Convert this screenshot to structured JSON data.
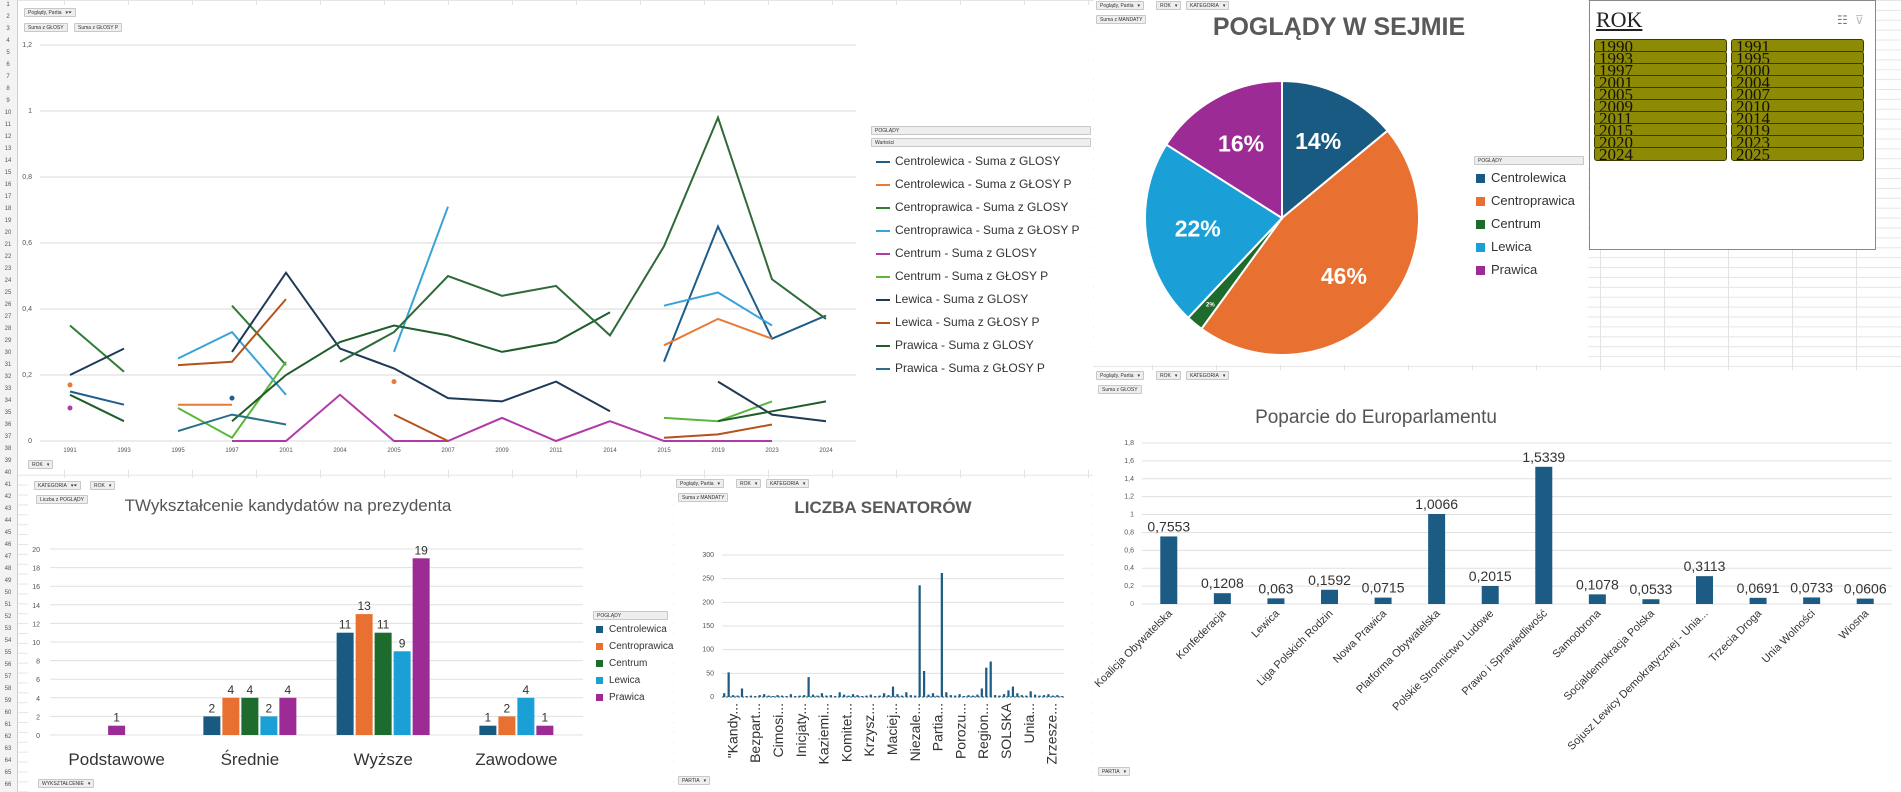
{
  "sheet": {
    "row_numbers": [
      1,
      2,
      3,
      4,
      5,
      6,
      7,
      8,
      9,
      10,
      11,
      12,
      13,
      14,
      15,
      16,
      17,
      18,
      19,
      20,
      21,
      22,
      23,
      24,
      25,
      26,
      27,
      28,
      29,
      30,
      31,
      32,
      33,
      34,
      35,
      36,
      37,
      38,
      39,
      40,
      41,
      42,
      43,
      44,
      45,
      46,
      47,
      48,
      49,
      50,
      51,
      52,
      53,
      54,
      55,
      56,
      57,
      58,
      59,
      60,
      61,
      62,
      63,
      64,
      65,
      66
    ]
  },
  "line_chart": {
    "filter_button": "Poglądy, Partia",
    "value_buttons": [
      "Suma z GŁOSY",
      "Suma z GŁOSY P"
    ],
    "axis_button": "ROK",
    "legend_header": "POGLĄDY",
    "legend_subheader": "Wartości",
    "chart_data": {
      "type": "line",
      "x": [
        "1991",
        "1993",
        "1995",
        "1997",
        "2001",
        "2004",
        "2005",
        "2007",
        "2009",
        "2011",
        "2014",
        "2015",
        "2019",
        "2023",
        "2024"
      ],
      "ylim": [
        0,
        1.2
      ],
      "yticks": [
        "0",
        "0,2",
        "0,4",
        "0,6",
        "0,8",
        "1",
        "1,2"
      ],
      "series": [
        {
          "name": "Centrolewica - Suma z GLOSY",
          "color": "#1f5d8a",
          "values": [
            0.15,
            0.11,
            null,
            0.13,
            null,
            null,
            null,
            null,
            null,
            null,
            null,
            0.24,
            0.65,
            0.31,
            0.38
          ]
        },
        {
          "name": "Centrolewica - Suma z GŁOSY P",
          "color": "#e87a34",
          "values": [
            0.17,
            null,
            0.11,
            0.11,
            null,
            null,
            0.18,
            null,
            null,
            null,
            null,
            0.29,
            0.37,
            0.31,
            null
          ]
        },
        {
          "name": "Centroprawica - Suma z GLOSY",
          "color": "#2e7d32",
          "values": [
            0.35,
            0.21,
            null,
            0.41,
            0.23,
            null,
            null,
            null,
            null,
            null,
            null,
            null,
            null,
            null,
            null
          ]
        },
        {
          "name": "Centroprawica - Suma z GŁOSY P",
          "color": "#3aa2d8",
          "values": [
            null,
            null,
            0.25,
            0.33,
            0.14,
            null,
            0.27,
            0.71,
            null,
            null,
            null,
            0.41,
            0.45,
            0.35,
            null
          ]
        },
        {
          "name": "Centrum - Suma z GLOSY",
          "color": "#b03aa8",
          "values": [
            0.1,
            null,
            null,
            0.0,
            0.0,
            0.14,
            0.0,
            0.0,
            0.07,
            0.0,
            0.06,
            0.0,
            0.0,
            0.0,
            null
          ]
        },
        {
          "name": "Centrum - Suma z GŁOSY P",
          "color": "#5bb63a",
          "values": [
            null,
            null,
            0.1,
            0.01,
            0.24,
            null,
            null,
            null,
            null,
            null,
            null,
            0.07,
            0.06,
            0.12,
            null
          ]
        },
        {
          "name": "Lewica - Suma z GLOSY",
          "color": "#1e3a57",
          "values": [
            0.2,
            0.28,
            null,
            0.27,
            0.51,
            0.28,
            0.22,
            0.13,
            0.12,
            0.18,
            0.09,
            null,
            0.18,
            0.08,
            0.06
          ]
        },
        {
          "name": "Lewica - Suma z GŁOSY P",
          "color": "#b5521b",
          "values": [
            null,
            null,
            0.23,
            0.24,
            0.43,
            null,
            0.08,
            0.0,
            null,
            null,
            null,
            0.01,
            0.02,
            0.05,
            null
          ]
        },
        {
          "name": "Prawica - Suma z GLOSY",
          "color": "#1f5e2b",
          "values": [
            0.14,
            0.06,
            null,
            0.06,
            0.2,
            0.3,
            0.35,
            0.32,
            0.27,
            0.3,
            0.39,
            null,
            0.06,
            0.09,
            0.12
          ]
        },
        {
          "name": "Prawica - Suma z GŁOSY P",
          "color": "#2b6d8c",
          "values": [
            null,
            null,
            0.03,
            0.08,
            0.05,
            null,
            null,
            null,
            null,
            null,
            null,
            null,
            null,
            null,
            null
          ]
        }
      ],
      "extra_series": [
        {
          "color": "#2d6b3a",
          "values": [
            null,
            null,
            null,
            null,
            null,
            0.24,
            0.33,
            0.5,
            0.44,
            0.47,
            0.32,
            0.59,
            0.98,
            0.49,
            0.37
          ]
        }
      ]
    }
  },
  "pie_chart": {
    "filter_buttons": [
      "Poglądy, Partia",
      "ROK",
      "KATEGORIA"
    ],
    "value_button": "Suma z MANDATY",
    "legend_header": "POGLĄDY",
    "chart_data": {
      "type": "pie",
      "title": "POGLĄDY W SEJMIE",
      "labels": [
        "Centrolewica",
        "Centroprawica",
        "Centrum",
        "Lewica",
        "Prawica"
      ],
      "values": [
        14,
        46,
        2,
        22,
        16
      ],
      "value_labels": [
        "14%",
        "46%",
        "2%",
        "22%",
        "16%"
      ],
      "colors": [
        "#185a82",
        "#e87131",
        "#1e6b2e",
        "#1aa0d6",
        "#9c2b96"
      ]
    }
  },
  "slicer": {
    "title": "ROK",
    "items": [
      "1990",
      "1991",
      "1993",
      "1995",
      "1997",
      "2000",
      "2001",
      "2004",
      "2005",
      "2007",
      "2009",
      "2010",
      "2011",
      "2014",
      "2015",
      "2019",
      "2020",
      "2023",
      "2024",
      "2025"
    ]
  },
  "education_chart": {
    "filter_buttons": [
      "KATEGORIA",
      "ROK"
    ],
    "value_button": "Liczba z POGLĄDY",
    "axis_button": "WYKSZTAŁCENIE",
    "legend_header": "POGLĄDY",
    "chart_data": {
      "type": "bar",
      "title": "TWykształcenie kandydatów na prezydenta",
      "categories": [
        "Podstawowe",
        "Średnie",
        "Wyższe",
        "Zawodowe"
      ],
      "ylim": [
        0,
        20
      ],
      "yticks": [
        "0",
        "2",
        "4",
        "6",
        "8",
        "10",
        "12",
        "14",
        "16",
        "18",
        "20"
      ],
      "series": [
        {
          "name": "Centrolewica",
          "color": "#185a82",
          "values": [
            null,
            2,
            11,
            1
          ]
        },
        {
          "name": "Centroprawica",
          "color": "#e87131",
          "values": [
            null,
            4,
            13,
            2
          ]
        },
        {
          "name": "Centrum",
          "color": "#1e6b2e",
          "values": [
            null,
            4,
            11,
            null
          ]
        },
        {
          "name": "Lewica",
          "color": "#1aa0d6",
          "values": [
            null,
            2,
            9,
            4
          ]
        },
        {
          "name": "Prawica",
          "color": "#9c2b96",
          "values": [
            1,
            4,
            19,
            1
          ]
        }
      ]
    }
  },
  "senators_chart": {
    "filter_buttons": [
      "Poglądy, Partia",
      "ROK",
      "KATEGORIA"
    ],
    "value_button": "Suma z MANDATY",
    "axis_button": "PARTIA",
    "chart_data": {
      "type": "bar",
      "title": "LICZBA SENATORÓW",
      "ylim": [
        0,
        300
      ],
      "yticks": [
        "0",
        "50",
        "100",
        "150",
        "200",
        "250",
        "300"
      ],
      "xticklabels": [
        "\"Kandy...",
        "Bezpart...",
        "Cimosi...",
        "Inicjaty...",
        "Kaziemi...",
        "Komitet...",
        "Krzysz...",
        "Maciej...",
        "Niezale...",
        "Partia...",
        "Porozu...",
        "Region...",
        "SOLSKA",
        "Unia...",
        "Zrzesze..."
      ],
      "values": [
        8,
        52,
        4,
        3,
        18,
        2,
        3,
        2,
        4,
        6,
        3,
        2,
        4,
        3,
        2,
        6,
        2,
        3,
        4,
        42,
        5,
        3,
        8,
        3,
        4,
        2,
        10,
        5,
        3,
        6,
        4,
        2,
        3,
        5,
        2,
        3,
        8,
        4,
        22,
        6,
        3,
        10,
        4,
        3,
        236,
        55,
        5,
        8,
        3,
        262,
        10,
        4,
        3,
        6,
        2,
        4,
        3,
        5,
        18,
        62,
        75,
        4,
        3,
        6,
        14,
        22,
        8,
        4,
        3,
        12,
        5,
        3,
        4,
        6,
        3,
        4,
        2
      ]
    }
  },
  "euro_chart": {
    "filter_buttons": [
      "Poglądy, Partia",
      "ROK",
      "KATEGORIA"
    ],
    "value_button": "Suma z GŁOSY",
    "axis_button": "PARTIA",
    "chart_data": {
      "type": "bar",
      "title": "Poparcie do Europarlamentu",
      "categories": [
        "Koalicja Obywatelska",
        "Konfederacja",
        "Lewica",
        "Liga Polskich Rodzin",
        "Nowa Prawica",
        "Platforma Obywatelska",
        "Polskie Stronnictwo Ludowe",
        "Prawo i Sprawiedliwość",
        "Samoobrona",
        "Socjaldemokracja Polska",
        "Sojusz Lewicy Demokratycznej - Unia...",
        "Trzecia Droga",
        "Unia Wolności",
        "Wiosna"
      ],
      "values": [
        0.7553,
        0.1208,
        0.063,
        0.1592,
        0.0715,
        1.0066,
        0.2015,
        1.5339,
        0.1078,
        0.0533,
        0.3113,
        0.0691,
        0.0733,
        0.0606
      ],
      "value_labels": [
        "0,7553",
        "0,1208",
        "0,063",
        "0,1592",
        "0,0715",
        "1,0066",
        "0,2015",
        "1,5339",
        "0,1078",
        "0,0533",
        "0,3113",
        "0,0691",
        "0,0733",
        "0,0606"
      ],
      "ylim": [
        0,
        1.8
      ],
      "yticks": [
        "0",
        "0,2",
        "0,4",
        "0,6",
        "0,8",
        "1",
        "1,2",
        "1,4",
        "1,6",
        "1,8"
      ],
      "color": "#1c5b83"
    }
  }
}
